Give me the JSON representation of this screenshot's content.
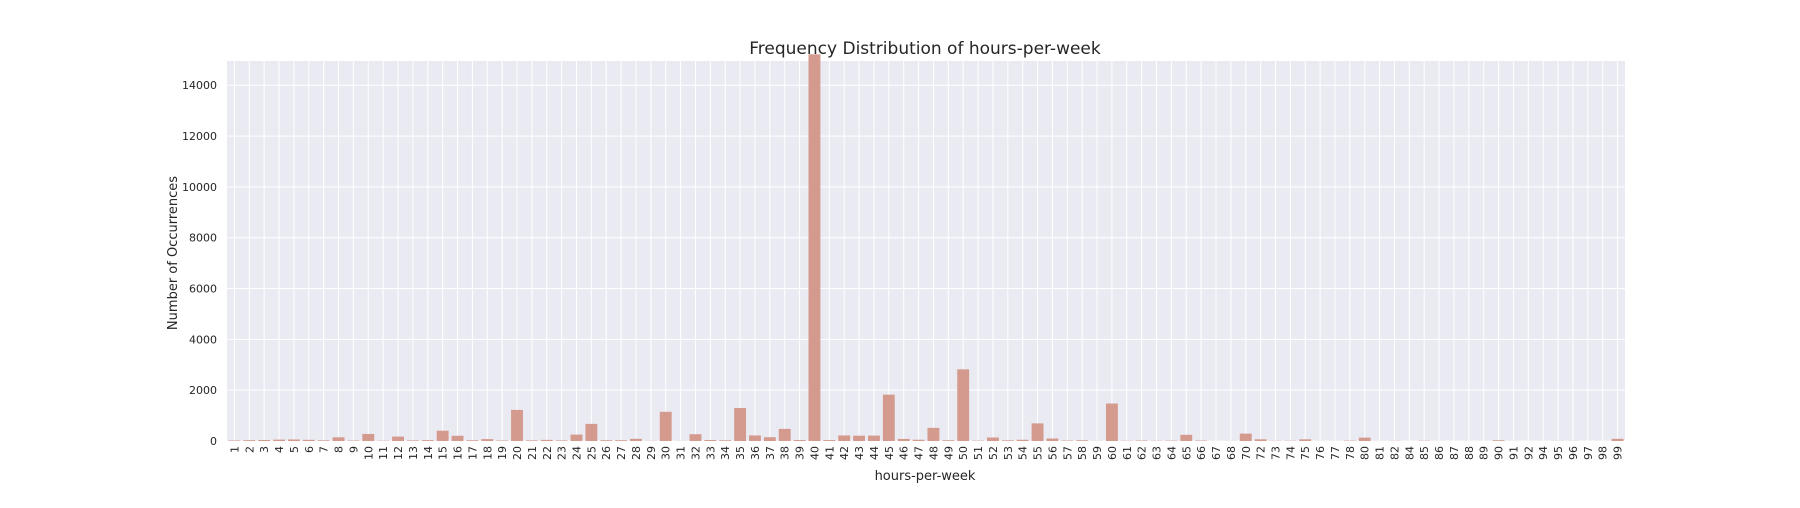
{
  "chart_data": {
    "type": "bar",
    "title": "Frequency Distribution of hours-per-week",
    "xlabel": "hours-per-week",
    "ylabel": "Number of Occurrences",
    "ylim": [
      0,
      14954
    ],
    "yticks": [
      0,
      2000,
      4000,
      6000,
      8000,
      10000,
      12000,
      14000
    ],
    "ytick_labels": [
      "0",
      "2000",
      "4000",
      "6000",
      "8000",
      "10000",
      "12000",
      "14000"
    ],
    "grid": true,
    "bar_color": "#d49a8e",
    "background_color": "#eaeaf2",
    "grid_color": "#ffffff",
    "categories": [
      "1",
      "2",
      "3",
      "4",
      "5",
      "6",
      "7",
      "8",
      "9",
      "10",
      "11",
      "12",
      "13",
      "14",
      "15",
      "16",
      "17",
      "18",
      "19",
      "20",
      "21",
      "22",
      "23",
      "24",
      "25",
      "26",
      "27",
      "28",
      "29",
      "30",
      "31",
      "32",
      "33",
      "34",
      "35",
      "36",
      "37",
      "38",
      "39",
      "40",
      "41",
      "42",
      "43",
      "44",
      "45",
      "46",
      "47",
      "48",
      "49",
      "50",
      "51",
      "52",
      "53",
      "54",
      "55",
      "56",
      "57",
      "58",
      "59",
      "60",
      "61",
      "62",
      "63",
      "64",
      "65",
      "66",
      "67",
      "68",
      "70",
      "72",
      "73",
      "74",
      "75",
      "76",
      "77",
      "78",
      "80",
      "81",
      "82",
      "84",
      "85",
      "86",
      "87",
      "88",
      "89",
      "90",
      "91",
      "92",
      "94",
      "95",
      "96",
      "97",
      "98",
      "99"
    ],
    "values": [
      20,
      32,
      39,
      54,
      60,
      46,
      26,
      145,
      18,
      278,
      11,
      173,
      23,
      34,
      404,
      205,
      29,
      75,
      18,
      1224,
      24,
      44,
      21,
      252,
      674,
      30,
      30,
      86,
      7,
      1149,
      5,
      266,
      39,
      28,
      1297,
      220,
      149,
      476,
      38,
      15217,
      36,
      219,
      208,
      212,
      1824,
      82,
      49,
      517,
      29,
      2819,
      13,
      138,
      25,
      48,
      694,
      97,
      17,
      28,
      5,
      1475,
      10,
      18,
      10,
      14,
      244,
      17,
      2,
      4,
      291,
      67,
      8,
      10,
      66,
      3,
      3,
      14,
      133,
      3,
      7,
      1,
      11,
      2,
      1,
      2,
      2,
      29,
      3,
      1,
      2,
      5,
      5,
      1,
      2,
      85
    ]
  }
}
